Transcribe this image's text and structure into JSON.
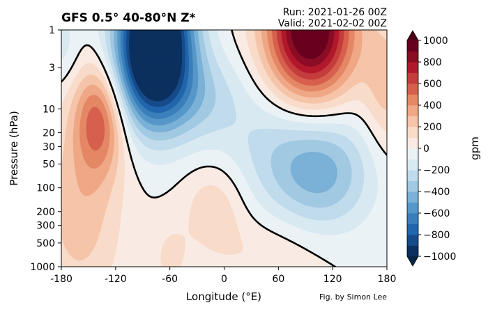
{
  "chart_data": {
    "type": "heatmap",
    "title": "GFS 0.5°  40-80°N Z*",
    "run_label": "Run: 2021-01-26 00Z",
    "valid_label": "Valid: 2021-02-02 00Z",
    "xlabel": "Longitude (°E)",
    "ylabel": "Pressure (hPa)",
    "xlim": [
      -180,
      180
    ],
    "ylim": [
      1000,
      1
    ],
    "y_scale": "log",
    "x_ticks": [
      -180,
      -120,
      -60,
      0,
      60,
      120,
      180
    ],
    "x_tick_labels": [
      "-180",
      "-120",
      "-60",
      "0",
      "60",
      "120",
      "180"
    ],
    "y_ticks": [
      1,
      3,
      10,
      20,
      30,
      50,
      100,
      200,
      300,
      500,
      1000
    ],
    "y_tick_labels": [
      "1",
      "3",
      "10",
      "20",
      "30",
      "50",
      "100",
      "200",
      "300",
      "500",
      "1000"
    ],
    "colorbar": {
      "label": "gpm",
      "range": [
        -1000,
        1000
      ],
      "interval": 100,
      "ticks": [
        -1000,
        -800,
        -600,
        -400,
        -200,
        0,
        200,
        400,
        600,
        800,
        1000
      ],
      "tick_labels": [
        "−1000",
        "−800",
        "−600",
        "−400",
        "−200",
        "0",
        "200",
        "400",
        "600",
        "800",
        "1000"
      ],
      "colors": [
        "#0b305f",
        "#164a88",
        "#2166ac",
        "#3a7fba",
        "#5697c9",
        "#7bb1d6",
        "#a1c9e2",
        "#c0dbec",
        "#d9e9f2",
        "#ebf2f6",
        "#f9ebe3",
        "#f8dbc9",
        "#f5c4a9",
        "#efa785",
        "#e48765",
        "#d6604d",
        "#c43c3c",
        "#b2182b",
        "#8b0d24",
        "#67001f"
      ],
      "under_color": "#052548",
      "over_color": "#4e0018"
    },
    "features": [
      {
        "name": "positive center",
        "lon": -138,
        "pressure_hPa": 13,
        "value": 480
      },
      {
        "name": "negative center",
        "lon": -70,
        "pressure_hPa": 1,
        "value": -900
      },
      {
        "name": "positive center",
        "lon": 95,
        "pressure_hPa": 1,
        "value": 850
      },
      {
        "name": "negative center",
        "lon": 110,
        "pressure_hPa": 60,
        "value": -380
      },
      {
        "name": "positive center",
        "lon": -10,
        "pressure_hPa": 180,
        "value": 150
      }
    ],
    "credit": "Fig. by Simon Lee"
  }
}
